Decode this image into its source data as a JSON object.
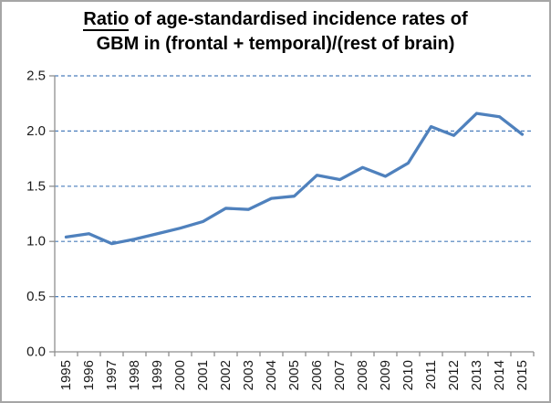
{
  "window": {
    "background": "#ffffff",
    "border_color": "#a6a6a6"
  },
  "chart_data": {
    "type": "line",
    "title": {
      "underlined_word": "Ratio",
      "line1_rest": " of age-standardised incidence rates of",
      "line2": "GBM in (frontal + temporal)/(rest of brain)",
      "full": "Ratio of age-standardised incidence rates of GBM in (frontal + temporal)/(rest of brain)"
    },
    "categories": [
      "1995",
      "1996",
      "1997",
      "1998",
      "1999",
      "2000",
      "2001",
      "2002",
      "2003",
      "2004",
      "2005",
      "2006",
      "2007",
      "2008",
      "2009",
      "2010",
      "2011",
      "2012",
      "2013",
      "2014",
      "2015"
    ],
    "series": [
      {
        "name": "ratio-frontal-temporal-vs-rest-of-brain",
        "color": "#4F81BD",
        "values": [
          1.04,
          1.07,
          0.98,
          1.02,
          1.07,
          1.12,
          1.18,
          1.3,
          1.29,
          1.39,
          1.41,
          1.6,
          1.56,
          1.67,
          1.59,
          1.71,
          2.04,
          1.96,
          2.16,
          2.13,
          1.97
        ]
      }
    ],
    "xlabel": "",
    "ylabel": "",
    "ylim": [
      0,
      2.5
    ],
    "ytick_step": 0.5,
    "ytick_labels": [
      "0.0",
      "0.5",
      "1.0",
      "1.5",
      "2.0",
      "2.5"
    ],
    "x_label_rotation": -90,
    "legend": "none",
    "grid": {
      "show": true,
      "style": "dashed",
      "color": "#4a7ebc"
    },
    "axis_color": "#8e8e8e",
    "tick_label_color": "#1a1a1a"
  }
}
